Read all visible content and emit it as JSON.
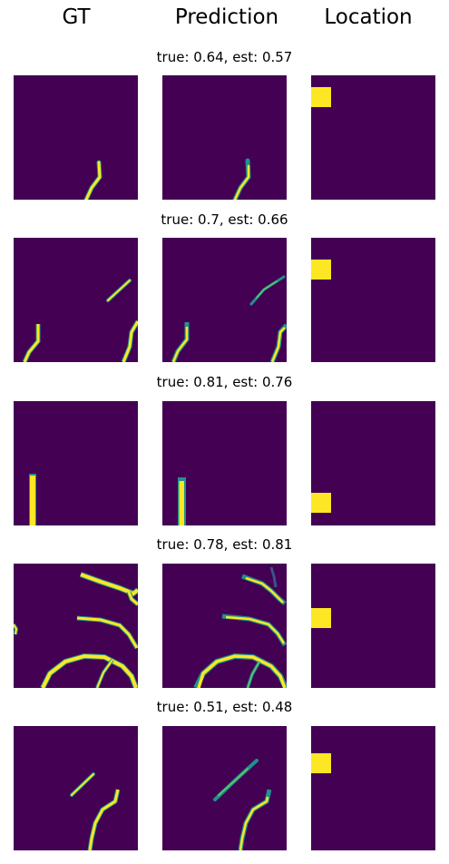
{
  "headers": {
    "gt": "GT",
    "prediction": "Prediction",
    "location": "Location"
  },
  "rows": [
    {
      "title": "true: 0.64, est: 0.57"
    },
    {
      "title": "true: 0.7, est: 0.66"
    },
    {
      "title": "true: 0.81, est: 0.76"
    },
    {
      "title": "true: 0.78, est: 0.81"
    },
    {
      "title": "true: 0.51, est: 0.48"
    }
  ],
  "colors": {
    "background": "#440154",
    "vessel": "#fde725",
    "vessel_edge": "#21918c"
  }
}
